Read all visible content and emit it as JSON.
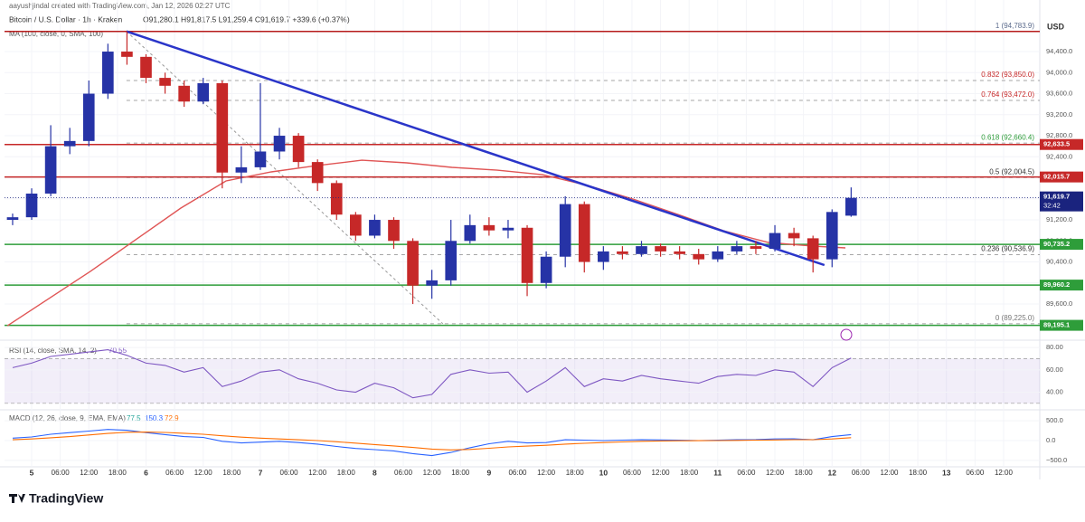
{
  "header": {
    "author": "aayushjindal created with TradingView.com, Jan 12, 2026 02:27 UTC",
    "symbol": "Bitcoin / U.S. Dollar · 1h · Kraken",
    "ohlc": "O91,280.1 H91,817.5 L91,259.4 C91,619.7 +339.6 (+0.37%)",
    "ma_label": "MA (100, close, 0, SMA, 100)"
  },
  "footer": {
    "brand": "TradingView"
  },
  "chart_data": [
    {
      "type": "candlestick",
      "currency": "USD",
      "up_color": "#2633a6",
      "down_color": "#c62828",
      "x": [
        -4,
        0,
        4,
        8,
        12,
        16,
        20,
        24,
        28,
        32,
        36,
        40,
        44,
        48,
        52,
        56,
        60,
        64,
        68,
        72,
        76,
        80,
        84,
        88,
        92,
        96,
        100,
        104,
        108,
        112,
        116,
        120,
        124,
        128,
        132,
        136,
        140,
        144,
        148,
        152,
        156,
        160,
        164,
        168,
        172
      ],
      "open": [
        91200,
        91250,
        91700,
        92600,
        92700,
        93600,
        94400,
        94300,
        93900,
        93750,
        93450,
        93800,
        92100,
        92200,
        92500,
        92800,
        92300,
        91900,
        91300,
        90900,
        91200,
        90800,
        89950,
        90050,
        90800,
        91100,
        91000,
        91050,
        90000,
        90500,
        91500,
        90400,
        90600,
        90550,
        90700,
        90600,
        90550,
        90450,
        90600,
        90700,
        90650,
        90950,
        90850,
        90450,
        91280.1
      ],
      "high": [
        91320,
        91800,
        93000,
        92950,
        93850,
        94550,
        94783.9,
        94350,
        94000,
        93850,
        93900,
        93850,
        92600,
        93800,
        92950,
        92850,
        92350,
        91950,
        91350,
        91300,
        91250,
        90850,
        90250,
        91200,
        91300,
        91250,
        91200,
        91100,
        90600,
        91650,
        91550,
        90700,
        90700,
        90800,
        90750,
        90700,
        90650,
        90700,
        90800,
        90800,
        91100,
        91050,
        90900,
        91400,
        91817.5
      ],
      "low": [
        91100,
        91200,
        91650,
        92450,
        92600,
        93500,
        94150,
        93800,
        93600,
        93350,
        93400,
        91800,
        91900,
        92150,
        92350,
        92200,
        91750,
        91200,
        90800,
        90850,
        90650,
        89600,
        89700,
        89950,
        90750,
        90900,
        90850,
        89750,
        89900,
        90300,
        90200,
        90250,
        90450,
        90500,
        90500,
        90450,
        90350,
        90400,
        90550,
        90550,
        90600,
        90700,
        90200,
        90300,
        91259.4
      ],
      "close": [
        91250,
        91700,
        92600,
        92700,
        93600,
        94400,
        94300,
        93900,
        93750,
        93450,
        93800,
        92100,
        92200,
        92500,
        92800,
        92300,
        91900,
        91300,
        90900,
        91200,
        90800,
        89950,
        90050,
        90800,
        91100,
        91000,
        91050,
        90000,
        90500,
        91500,
        90400,
        90600,
        90550,
        90700,
        90600,
        90550,
        90450,
        90600,
        90700,
        90650,
        90950,
        90850,
        90450,
        91350,
        91619.7
      ],
      "xlim": [
        -5.7,
        211.6
      ],
      "xticks": [
        {
          "value": 0,
          "label": "5"
        },
        {
          "value": 6,
          "label": "06:00"
        },
        {
          "value": 12,
          "label": "12:00"
        },
        {
          "value": 18,
          "label": "18:00"
        },
        {
          "value": 24,
          "label": "6"
        },
        {
          "value": 30,
          "label": "06:00"
        },
        {
          "value": 36,
          "label": "12:00"
        },
        {
          "value": 42,
          "label": "18:00"
        },
        {
          "value": 48,
          "label": "7"
        },
        {
          "value": 54,
          "label": "06:00"
        },
        {
          "value": 60,
          "label": "12:00"
        },
        {
          "value": 66,
          "label": "18:00"
        },
        {
          "value": 72,
          "label": "8"
        },
        {
          "value": 78,
          "label": "06:00"
        },
        {
          "value": 84,
          "label": "12:00"
        },
        {
          "value": 90,
          "label": "18:00"
        },
        {
          "value": 96,
          "label": "9"
        },
        {
          "value": 102,
          "label": "06:00"
        },
        {
          "value": 108,
          "label": "12:00"
        },
        {
          "value": 114,
          "label": "18:00"
        },
        {
          "value": 120,
          "label": "10"
        },
        {
          "value": 126,
          "label": "06:00"
        },
        {
          "value": 132,
          "label": "12:00"
        },
        {
          "value": 138,
          "label": "18:00"
        },
        {
          "value": 144,
          "label": "11"
        },
        {
          "value": 150,
          "label": "06:00"
        },
        {
          "value": 156,
          "label": "12:00"
        },
        {
          "value": 162,
          "label": "18:00"
        },
        {
          "value": 168,
          "label": "12"
        },
        {
          "value": 174,
          "label": "06:00"
        },
        {
          "value": 180,
          "label": "12:00"
        },
        {
          "value": 186,
          "label": "18:00"
        },
        {
          "value": 192,
          "label": "13"
        },
        {
          "value": 198,
          "label": "06:00"
        },
        {
          "value": 204,
          "label": "12:00"
        }
      ],
      "ylim": [
        88930,
        94865
      ],
      "yticks": [
        {
          "value": 89600,
          "label": "89,600.0"
        },
        {
          "value": 90000,
          "label": "90,000.0"
        },
        {
          "value": 90400,
          "label": "90,400.0"
        },
        {
          "value": 90800,
          "label": "90,800.0"
        },
        {
          "value": 91200,
          "label": "91,200.0"
        },
        {
          "value": 91600,
          "label": "91,600.0"
        },
        {
          "value": 92000,
          "label": "92,000.0"
        },
        {
          "value": 92400,
          "label": "92,400.0"
        },
        {
          "value": 92800,
          "label": "92,800.0"
        },
        {
          "value": 93200,
          "label": "93,200.0"
        },
        {
          "value": 93600,
          "label": "93,600.0"
        },
        {
          "value": 94000,
          "label": "94,000.0"
        },
        {
          "value": 94400,
          "label": "94,400.0"
        }
      ],
      "ma": {
        "color": "#e05555",
        "x": [
          -5.1,
          12.3,
          21.8,
          31.3,
          40.8,
          50.3,
          59.8,
          69.3,
          78.7,
          88.2,
          97.7,
          107.2,
          116.7,
          126.2,
          135.7,
          145.2,
          154.6,
          164.1,
          170.8
        ],
        "values": [
          89187,
          90219,
          90821,
          91424,
          91940,
          92112,
          92232,
          92335,
          92284,
          92198,
          92146,
          92060,
          91854,
          91596,
          91303,
          90994,
          90770,
          90701,
          90667
        ]
      },
      "trendline": {
        "color": "#2a35c9",
        "x": [
          19.9,
          166.4
        ],
        "values": [
          94783.9,
          90340
        ]
      },
      "levels": [
        {
          "value": 94783.9,
          "color": "#b71c1c"
        },
        {
          "value": 92633.5,
          "label": "92,633.5",
          "color": "#c62828"
        },
        {
          "value": 92015.7,
          "label": "92,015.7",
          "color": "#c62828"
        },
        {
          "value": 90735.2,
          "label": "90,735.2",
          "color": "#2e9d3a"
        },
        {
          "value": 89960.2,
          "label": "89,960.2",
          "color": "#2e9d3a"
        },
        {
          "value": 89195.1,
          "label": "89,195.1",
          "color": "#2e9d3a"
        }
      ],
      "fib": {
        "anchor_x": [
          19.9,
          86.3
        ],
        "levels": [
          {
            "value": 94783.9,
            "label": "1 (94,783.9)",
            "color": "#5b6b8c"
          },
          {
            "value": 93850.0,
            "label": "0.832 (93,850.0)",
            "color": "#c62828"
          },
          {
            "value": 93472.0,
            "label": "0.764 (93,472.0)",
            "color": "#c62828"
          },
          {
            "value": 92660.4,
            "label": "0.618 (92,660.4)",
            "color": "#2e9d3a"
          },
          {
            "value": 92004.5,
            "label": "0.5 (92,004.5)",
            "color": "#333333"
          },
          {
            "value": 90536.9,
            "label": "0.236 (90,536.9)",
            "color": "#333333"
          },
          {
            "value": 89225.0,
            "label": "0 (89,225.0)",
            "color": "#777777"
          }
        ]
      },
      "last_price": {
        "value": 91619.7,
        "label": "91,619.7",
        "countdown": "32:42",
        "color": "#1a237e"
      }
    },
    {
      "type": "line",
      "title": "RSI (14, close, SMA, 14, 2)",
      "readout": "70.55",
      "series": [
        {
          "color": "#7e57c2",
          "values": [
            62,
            66,
            72,
            74,
            76,
            78,
            73,
            66,
            64,
            58,
            62,
            45,
            50,
            58,
            60,
            52,
            48,
            42,
            40,
            48,
            44,
            35,
            38,
            56,
            60,
            57,
            58,
            40,
            50,
            62,
            45,
            52,
            50,
            55,
            52,
            50,
            48,
            54,
            56,
            55,
            60,
            58,
            45,
            62,
            70.55
          ]
        }
      ],
      "band": [
        30,
        70
      ],
      "band_color": "#7e57c2",
      "ylim": [
        25,
        85
      ],
      "yticks": [
        {
          "value": 40,
          "label": "40.00"
        },
        {
          "value": 60,
          "label": "60.00"
        },
        {
          "value": 80,
          "label": "80.00"
        }
      ]
    },
    {
      "type": "line",
      "title": "MACD (12, 26, close, 9, EMA, EMA)",
      "readout": [
        "77.5",
        "150.3",
        "72.9"
      ],
      "series": [
        {
          "color": "#2962ff",
          "values": [
            60,
            90,
            160,
            200,
            240,
            280,
            260,
            200,
            150,
            100,
            80,
            -20,
            -60,
            -40,
            -20,
            -50,
            -90,
            -150,
            -200,
            -230,
            -260,
            -330,
            -380,
            -300,
            -180,
            -80,
            -20,
            -60,
            -50,
            20,
            10,
            0,
            10,
            20,
            15,
            10,
            0,
            10,
            20,
            25,
            40,
            45,
            20,
            100,
            150.3
          ]
        },
        {
          "color": "#ff6d00",
          "values": [
            20,
            40,
            70,
            100,
            140,
            180,
            210,
            215,
            205,
            185,
            160,
            120,
            85,
            60,
            40,
            20,
            0,
            -30,
            -65,
            -100,
            -135,
            -175,
            -215,
            -235,
            -225,
            -195,
            -160,
            -140,
            -120,
            -90,
            -70,
            -50,
            -35,
            -20,
            -10,
            -5,
            -4,
            0,
            5,
            10,
            15,
            22,
            22,
            40,
            72.9
          ]
        }
      ],
      "ylim": [
        -640,
        730
      ],
      "yticks": [
        {
          "value": 500,
          "label": "500.0"
        },
        {
          "value": 0,
          "label": "0.0"
        },
        {
          "value": -500,
          "label": "−500.0"
        }
      ]
    }
  ]
}
